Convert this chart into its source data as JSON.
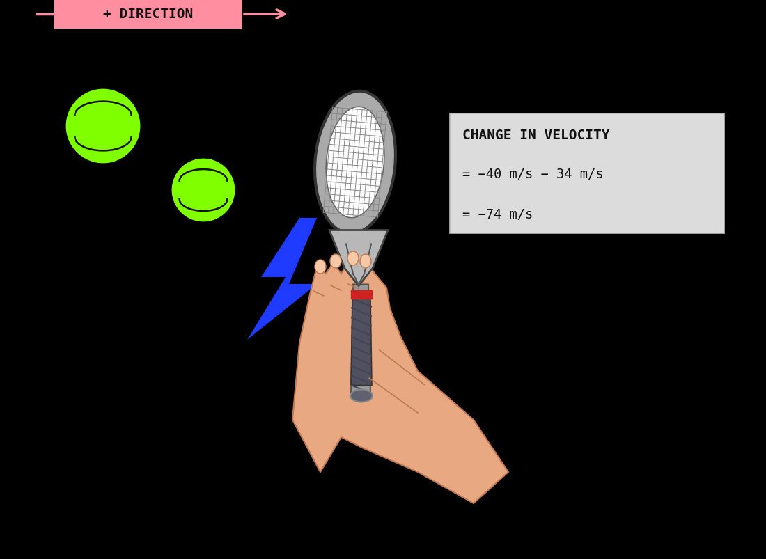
{
  "bg_color": "#000000",
  "dir_box_color": "#FF8FA0",
  "dir_text": "+ DIRECTION",
  "arrow_color": "#FF8FA0",
  "ball_color": "#7FFF00",
  "ball_seam_color": "#111111",
  "lightning_color": "#1E3BFF",
  "box_bg": "#DCDCDC",
  "box_line1": "CHANGE IN VELOCITY",
  "box_line2": "= −40 m/s − 34 m/s",
  "box_line3": "= −74 m/s",
  "racket_frame_color": "#AAAAAA",
  "racket_string_bg": "#FFFFFF",
  "racket_string_color": "#888888",
  "racket_body_color": "#B8B8B8",
  "grip_color": "#505060",
  "grip_wrap_color": "#444455",
  "band_color": "#CC2222",
  "butt_color": "#606070",
  "hand_color": "#E8A882",
  "hand_edge_color": "#C07850",
  "figw": 11.0,
  "figh": 8.04,
  "dpi": 100
}
